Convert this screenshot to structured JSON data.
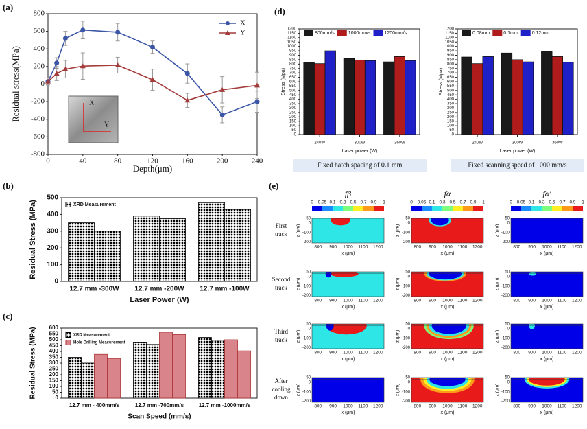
{
  "chart_data": [
    {
      "panel": "(a)",
      "type": "line",
      "xlabel": "Depth(μm)",
      "ylabel": "Residual stress(MPa)",
      "x": [
        0,
        10,
        20,
        40,
        80,
        120,
        160,
        200,
        240
      ],
      "xlim": [
        0,
        240
      ],
      "xticks": [
        0,
        40,
        80,
        120,
        160,
        200,
        240
      ],
      "ylim": [
        -800,
        800
      ],
      "yticks": [
        -800,
        -600,
        -400,
        -200,
        0,
        200,
        400,
        600,
        800
      ],
      "legend": "upper right",
      "inset_labels": [
        "X",
        "Y"
      ],
      "series": [
        {
          "name": "X",
          "color": "#3b56a6",
          "marker": "circle",
          "values": [
            30,
            240,
            520,
            615,
            590,
            420,
            120,
            -350,
            -200
          ],
          "errors": [
            40,
            60,
            80,
            100,
            100,
            70,
            110,
            90,
            120
          ]
        },
        {
          "name": "Y",
          "color": "#a33b3b",
          "marker": "triangle",
          "values": [
            30,
            120,
            170,
            205,
            215,
            50,
            -185,
            -65,
            -15
          ],
          "errors": [
            40,
            80,
            100,
            150,
            90,
            120,
            80,
            150,
            150
          ]
        }
      ]
    },
    {
      "panel": "(b)",
      "type": "bar",
      "xlabel": "Laser Power (W)",
      "ylabel": "Residual Stress (MPa)",
      "categories": [
        "12.7 mm -300W",
        "12.7 mm -200W",
        "12.7 mm -100W"
      ],
      "ylim": [
        0,
        500
      ],
      "yticks": [
        0,
        100,
        200,
        300,
        400,
        500
      ],
      "legend": "upper left",
      "series": [
        {
          "name": "XRD Measurement",
          "color": "#000000",
          "hatch": "dots",
          "values": [
            350,
            390,
            470
          ]
        },
        {
          "color": "#000000",
          "hatch": "dots",
          "values": [
            300,
            375,
            430
          ]
        }
      ]
    },
    {
      "panel": "(c)",
      "type": "bar",
      "xlabel": "Scan Speed (mm/s)",
      "ylabel": "Residual Stress (MPa)",
      "categories": [
        "12.7 mm - 400mm/s",
        "12.7 mm -700mm/s",
        "12.7 mm -1000mm/s"
      ],
      "ylim": [
        0,
        600
      ],
      "yticks": [
        0,
        50,
        100,
        150,
        200,
        250,
        300,
        350,
        400,
        450,
        500,
        550,
        600
      ],
      "legend": "upper left",
      "series": [
        {
          "name": "XRD Measurement",
          "color": "#000000",
          "hatch": "dots",
          "values": [
            350,
            480,
            520
          ]
        },
        {
          "color": "#000000",
          "hatch": "dots",
          "values": [
            300,
            460,
            495
          ]
        },
        {
          "name": "Hole Drilling Measurement",
          "color": "#d9838a",
          "values": [
            375,
            565,
            500
          ]
        },
        {
          "color": "#d9838a",
          "values": [
            340,
            545,
            405
          ]
        }
      ]
    },
    {
      "type": "bar",
      "xlabel": "Laser power (W)",
      "ylabel": "Stress (Mpa)",
      "caption": "Fixed hatch spacing of 0.1 mm",
      "categories": [
        "240W",
        "300W",
        "360W"
      ],
      "ylim": [
        0,
        1200
      ],
      "yticks": [
        0,
        50,
        100,
        150,
        200,
        250,
        300,
        350,
        400,
        450,
        500,
        550,
        600,
        650,
        700,
        750,
        800,
        850,
        900,
        950,
        1000,
        1050,
        1100,
        1150,
        1200
      ],
      "legend": "top",
      "series": [
        {
          "name": "800mm/s",
          "color": "#1a1a1a",
          "values": [
            820,
            865,
            825
          ]
        },
        {
          "name": "1000mm/s",
          "color": "#b01c1c",
          "values": [
            805,
            845,
            885
          ]
        },
        {
          "name": "1200mm/s",
          "color": "#2020c8",
          "values": [
            950,
            840,
            840
          ]
        }
      ]
    },
    {
      "type": "bar",
      "xlabel": "Laser power (W)",
      "ylabel": "Stress (Mpa)",
      "caption": "Fixed scanning speed of 1000 mm/s",
      "categories": [
        "240W",
        "300W",
        "360W"
      ],
      "ylim": [
        0,
        1200
      ],
      "yticks": [
        0,
        50,
        100,
        150,
        200,
        250,
        300,
        350,
        400,
        450,
        500,
        550,
        600,
        650,
        700,
        750,
        800,
        850,
        900,
        950,
        1000,
        1050,
        1100,
        1150,
        1200
      ],
      "legend": "top",
      "series": [
        {
          "name": "0.08mm",
          "color": "#1a1a1a",
          "values": [
            880,
            925,
            945
          ]
        },
        {
          "name": "0.1mm",
          "color": "#b01c1c",
          "values": [
            805,
            850,
            885
          ]
        },
        {
          "name": "0.12mm",
          "color": "#2020c8",
          "values": [
            885,
            825,
            820
          ]
        }
      ]
    }
  ],
  "panel_e": {
    "panel": "(d)",
    "panel2": "(e)",
    "columns": [
      "fβ",
      "fα",
      "fα'"
    ],
    "colorbar_ticks": [
      0,
      0.05,
      0.1,
      0.3,
      0.5,
      0.7,
      0.9,
      1
    ],
    "rows": [
      [
        "First",
        "track"
      ],
      [
        "Second",
        "track"
      ],
      [
        "Third",
        "track"
      ],
      [
        "After",
        "cooling",
        "down"
      ]
    ],
    "xticks": [
      800,
      900,
      1000,
      1100,
      1200
    ],
    "zticks": [
      50,
      0,
      -100,
      -200
    ],
    "xlabel": "x (μm)",
    "zlabel": "z (μm)"
  }
}
